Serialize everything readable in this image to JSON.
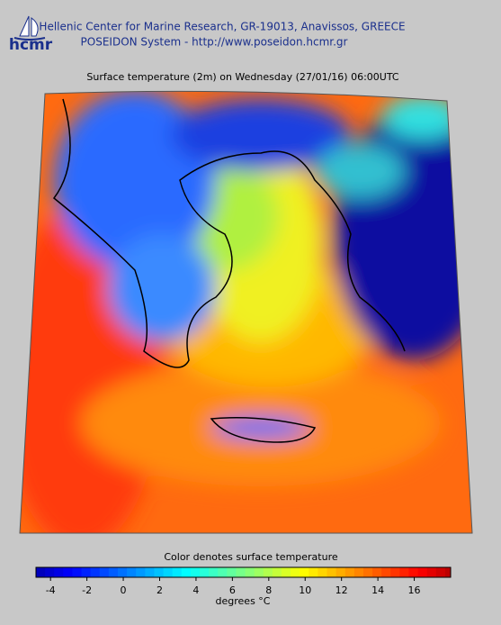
{
  "header": {
    "logo": "hcmr",
    "line1": "Hellenic Center for Marine Research, GR-19013, Anavissos, GREECE",
    "line2": "POSEIDON System - http://www.poseidon.hcmr.gr"
  },
  "map": {
    "title": "Surface temperature (2m) on Wednesday (27/01/16) 06:00UTC"
  },
  "colorbar": {
    "title": "Color denotes surface temperature",
    "lim": [
      -4.8,
      18
    ],
    "ticks": [
      -4,
      -2,
      0,
      2,
      4,
      6,
      8,
      10,
      12,
      14,
      16
    ],
    "step": 0.5,
    "unit_label": "degrees",
    "unit": "°C"
  }
}
